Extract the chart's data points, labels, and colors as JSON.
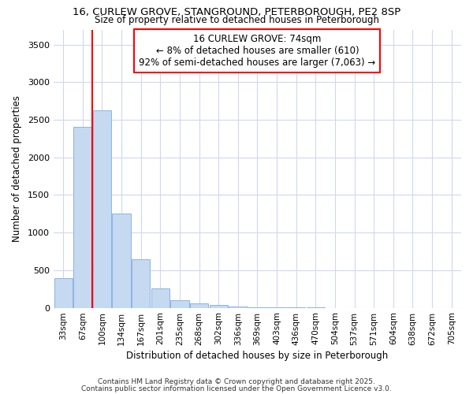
{
  "title1": "16, CURLEW GROVE, STANGROUND, PETERBOROUGH, PE2 8SP",
  "title2": "Size of property relative to detached houses in Peterborough",
  "xlabel": "Distribution of detached houses by size in Peterborough",
  "ylabel": "Number of detached properties",
  "bar_color": "#c5d9f1",
  "bar_edge_color": "#8db4e2",
  "bar_values": [
    390,
    2410,
    2630,
    1250,
    640,
    260,
    105,
    55,
    35,
    20,
    10,
    5,
    2,
    1,
    0,
    0,
    0,
    0,
    0,
    0,
    0
  ],
  "x_labels": [
    "33sqm",
    "67sqm",
    "100sqm",
    "134sqm",
    "167sqm",
    "201sqm",
    "235sqm",
    "268sqm",
    "302sqm",
    "336sqm",
    "369sqm",
    "403sqm",
    "436sqm",
    "470sqm",
    "504sqm",
    "537sqm",
    "571sqm",
    "604sqm",
    "638sqm",
    "672sqm",
    "705sqm"
  ],
  "ylim": [
    0,
    3700
  ],
  "yticks": [
    0,
    500,
    1000,
    1500,
    2000,
    2500,
    3000,
    3500
  ],
  "property_label": "16 CURLEW GROVE: 74sqm",
  "annotation_line1": "← 8% of detached houses are smaller (610)",
  "annotation_line2": "92% of semi-detached houses are larger (7,063) →",
  "vline_x": 1.5,
  "bg_color": "#ffffff",
  "grid_color": "#d0d8f0",
  "footer1": "Contains HM Land Registry data © Crown copyright and database right 2025.",
  "footer2": "Contains public sector information licensed under the Open Government Licence v3.0."
}
